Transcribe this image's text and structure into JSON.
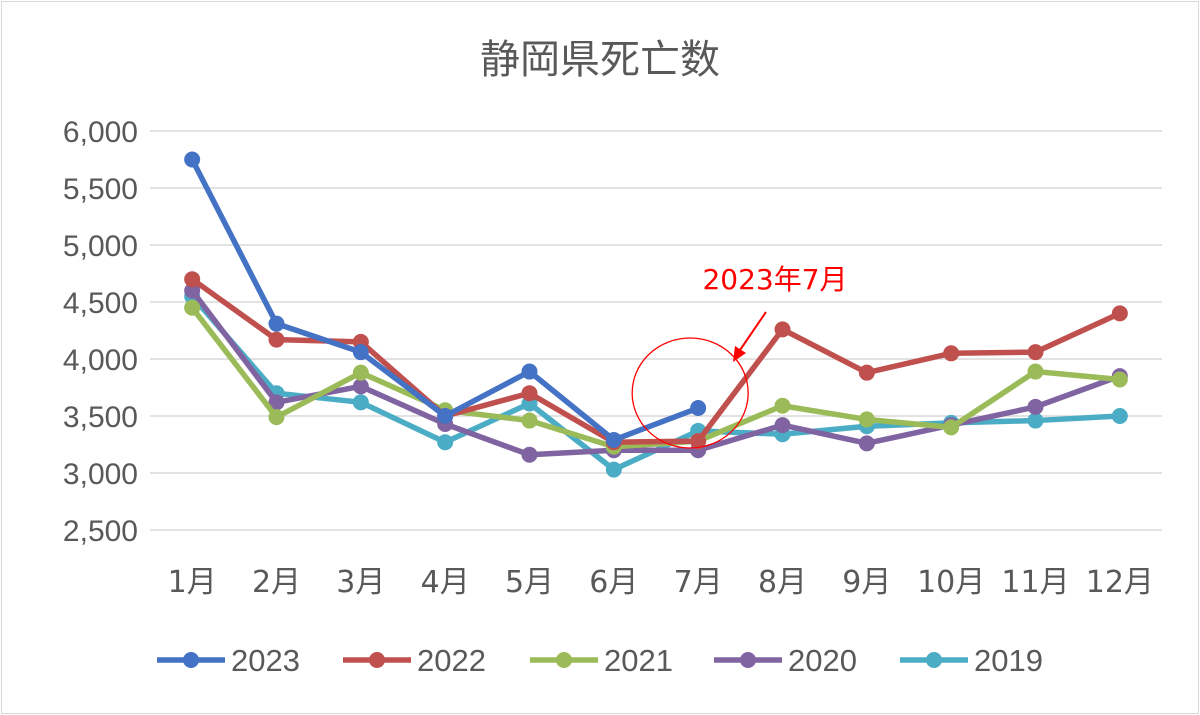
{
  "chart_data": {
    "type": "line",
    "title": "静岡県死亡数",
    "xlabel": "",
    "ylabel": "",
    "categories": [
      "1月",
      "2月",
      "3月",
      "4月",
      "5月",
      "6月",
      "7月",
      "8月",
      "9月",
      "10月",
      "11月",
      "12月"
    ],
    "ylim": [
      2500,
      6000
    ],
    "yticks": [
      2500,
      3000,
      3500,
      4000,
      4500,
      5000,
      5500,
      6000
    ],
    "ytick_labels": [
      "2,500",
      "3,000",
      "3,500",
      "4,000",
      "4,500",
      "5,000",
      "5,500",
      "6,000"
    ],
    "grid": true,
    "legend_position": "bottom",
    "series": [
      {
        "name": "2023",
        "color": "#4472c4",
        "values": [
          5750,
          4310,
          4060,
          3500,
          3890,
          3290,
          3570,
          null,
          null,
          null,
          null,
          null
        ]
      },
      {
        "name": "2022",
        "color": "#c0504d",
        "values": [
          4700,
          4170,
          4150,
          3500,
          3700,
          3270,
          3280,
          4260,
          3880,
          4050,
          4060,
          4400
        ]
      },
      {
        "name": "2021",
        "color": "#9bbb59",
        "values": [
          4450,
          3490,
          3880,
          3550,
          3460,
          3230,
          3280,
          3590,
          3470,
          3400,
          3890,
          3820
        ]
      },
      {
        "name": "2020",
        "color": "#8064a2",
        "values": [
          4600,
          3620,
          3760,
          3430,
          3160,
          3200,
          3200,
          3420,
          3260,
          3420,
          3580,
          3850
        ]
      },
      {
        "name": "2019",
        "color": "#4bacc6",
        "values": [
          4550,
          3700,
          3620,
          3270,
          3610,
          3030,
          3370,
          3340,
          3410,
          3440,
          3460,
          3500
        ]
      }
    ],
    "annotations": [
      {
        "text": "2023年7月",
        "color": "#ff0000",
        "target": {
          "x": "7月",
          "y": 3570
        }
      }
    ]
  }
}
